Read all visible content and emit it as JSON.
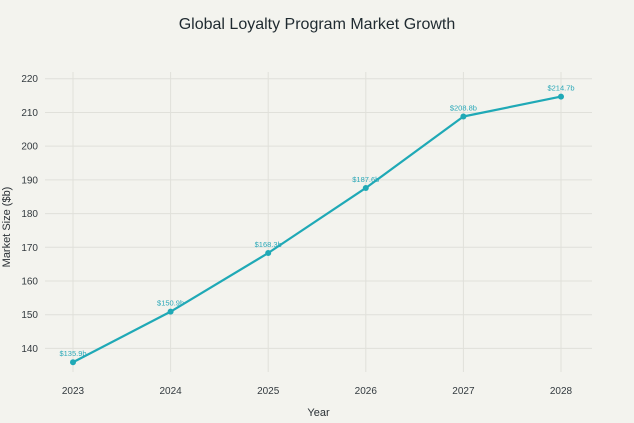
{
  "chart_data": {
    "type": "line",
    "title": "Global Loyalty Program Market Growth",
    "xlabel": "Year",
    "ylabel": "Market Size ($b)",
    "categories": [
      "2023",
      "2024",
      "2025",
      "2026",
      "2027",
      "2028"
    ],
    "series": [
      {
        "values": [
          135.9,
          150.9,
          168.3,
          187.6,
          208.8,
          214.7
        ],
        "labels": [
          "$135.9b",
          "$150.9b",
          "$168.3b",
          "$187.6b",
          "$208.8b",
          "$214.7b"
        ]
      }
    ],
    "yticks": [
      140,
      150,
      160,
      170,
      180,
      190,
      200,
      210,
      220
    ],
    "ylim": [
      133,
      222
    ],
    "grid": true,
    "line_color": "#1fa9b6"
  }
}
